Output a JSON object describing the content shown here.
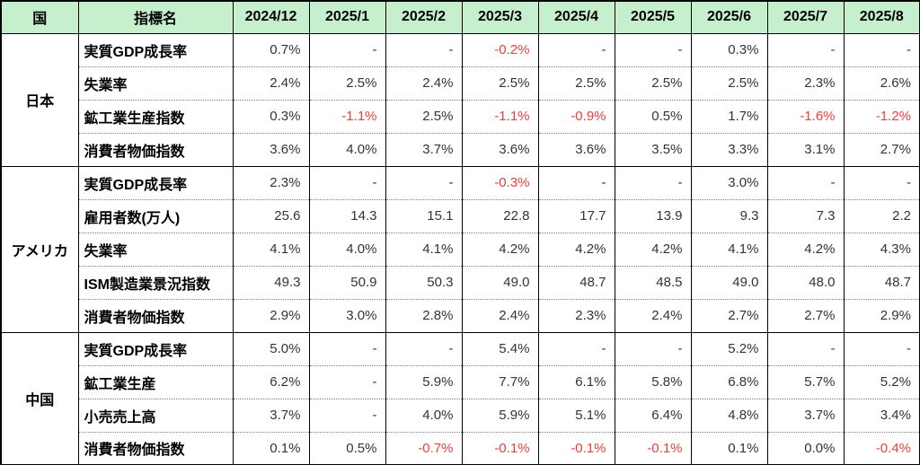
{
  "chart_data": {
    "type": "table",
    "columns": [
      "国",
      "指標名",
      "2024/12",
      "2025/1",
      "2025/2",
      "2025/3",
      "2025/4",
      "2025/5",
      "2025/6",
      "2025/7",
      "2025/8"
    ],
    "groups": [
      {
        "country": "日本",
        "rows": [
          {
            "indicator": "実質GDP成長率",
            "values": [
              "0.7%",
              "-",
              "-",
              "-0.2%",
              "-",
              "-",
              "0.3%",
              "-",
              "-"
            ]
          },
          {
            "indicator": "失業率",
            "values": [
              "2.4%",
              "2.5%",
              "2.4%",
              "2.5%",
              "2.5%",
              "2.5%",
              "2.5%",
              "2.3%",
              "2.6%"
            ]
          },
          {
            "indicator": "鉱工業生産指数",
            "values": [
              "0.3%",
              "-1.1%",
              "2.5%",
              "-1.1%",
              "-0.9%",
              "0.5%",
              "1.7%",
              "-1.6%",
              "-1.2%"
            ]
          },
          {
            "indicator": "消費者物価指数",
            "values": [
              "3.6%",
              "4.0%",
              "3.7%",
              "3.6%",
              "3.6%",
              "3.5%",
              "3.3%",
              "3.1%",
              "2.7%"
            ]
          }
        ]
      },
      {
        "country": "アメリカ",
        "rows": [
          {
            "indicator": "実質GDP成長率",
            "values": [
              "2.3%",
              "-",
              "-",
              "-0.3%",
              "-",
              "-",
              "3.0%",
              "-",
              "-"
            ]
          },
          {
            "indicator": "雇用者数(万人)",
            "values": [
              "25.6",
              "14.3",
              "15.1",
              "22.8",
              "17.7",
              "13.9",
              "9.3",
              "7.3",
              "2.2"
            ]
          },
          {
            "indicator": "失業率",
            "values": [
              "4.1%",
              "4.0%",
              "4.1%",
              "4.2%",
              "4.2%",
              "4.2%",
              "4.1%",
              "4.2%",
              "4.3%"
            ]
          },
          {
            "indicator": "ISM製造業景況指数",
            "values": [
              "49.3",
              "50.9",
              "50.3",
              "49.0",
              "48.7",
              "48.5",
              "49.0",
              "48.0",
              "48.7"
            ]
          },
          {
            "indicator": "消費者物価指数",
            "values": [
              "2.9%",
              "3.0%",
              "2.8%",
              "2.4%",
              "2.3%",
              "2.4%",
              "2.7%",
              "2.7%",
              "2.9%"
            ]
          }
        ]
      },
      {
        "country": "中国",
        "rows": [
          {
            "indicator": "実質GDP成長率",
            "values": [
              "5.0%",
              "-",
              "-",
              "5.4%",
              "-",
              "-",
              "5.2%",
              "-",
              "-"
            ]
          },
          {
            "indicator": "鉱工業生産",
            "values": [
              "6.2%",
              "-",
              "5.9%",
              "7.7%",
              "6.1%",
              "5.8%",
              "6.8%",
              "5.7%",
              "5.2%"
            ]
          },
          {
            "indicator": "小売売上高",
            "values": [
              "3.7%",
              "-",
              "4.0%",
              "5.9%",
              "5.1%",
              "6.4%",
              "4.8%",
              "3.7%",
              "3.4%"
            ]
          },
          {
            "indicator": "消費者物価指数",
            "values": [
              "0.1%",
              "0.5%",
              "-0.7%",
              "-0.1%",
              "-0.1%",
              "-0.1%",
              "0.1%",
              "0.0%",
              "-0.4%"
            ]
          }
        ]
      }
    ],
    "layout": {
      "header_background": "#c6efce",
      "negative_value_color": "#e8413e",
      "positive_value_color": "#333333",
      "grid": "solid columns, dotted row separators within country groups"
    }
  }
}
